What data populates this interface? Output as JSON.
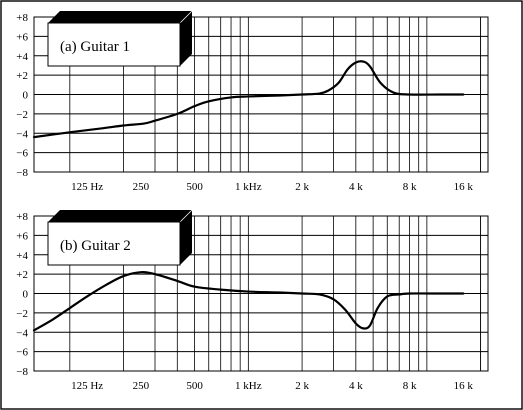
{
  "chart_data": [
    {
      "type": "line",
      "title": "(a) Guitar 1",
      "xlabel": "",
      "ylabel": "",
      "x_scale": "log",
      "xlim": [
        63,
        22000
      ],
      "ylim": [
        -8,
        8
      ],
      "grid": true,
      "y_ticks": [
        "+8",
        "+6",
        "+4",
        "+2",
        "0",
        "−2",
        "−4",
        "−6",
        "−8"
      ],
      "y_tick_values": [
        8,
        6,
        4,
        2,
        0,
        -2,
        -4,
        -6,
        -8
      ],
      "x_tick_labels": [
        "125 Hz",
        "250",
        "500",
        "1 kHz",
        "2 k",
        "4 k",
        "8 k",
        "16 k"
      ],
      "x_tick_values": [
        125,
        250,
        500,
        1000,
        2000,
        4000,
        8000,
        16000
      ],
      "series": [
        {
          "x": [
            63,
            100,
            150,
            200,
            260,
            300,
            400,
            500,
            600,
            800,
            1000,
            1500,
            2000,
            2500,
            2800,
            3200,
            3600,
            4000,
            4400,
            4800,
            5500,
            6500,
            8000,
            12000,
            16000
          ],
          "y": [
            -4.4,
            -3.9,
            -3.5,
            -3.2,
            -3.0,
            -2.7,
            -2.0,
            -1.2,
            -0.7,
            -0.3,
            -0.2,
            -0.1,
            0.0,
            0.1,
            0.4,
            1.2,
            2.6,
            3.3,
            3.4,
            2.9,
            1.2,
            0.2,
            0.0,
            0.0,
            0.0
          ]
        }
      ]
    },
    {
      "type": "line",
      "title": "(b) Guitar 2",
      "xlabel": "",
      "ylabel": "",
      "x_scale": "log",
      "xlim": [
        63,
        22000
      ],
      "ylim": [
        -8,
        8
      ],
      "grid": true,
      "y_ticks": [
        "+8",
        "+6",
        "+4",
        "+2",
        "0",
        "−2",
        "−4",
        "−6",
        "−8"
      ],
      "y_tick_values": [
        8,
        6,
        4,
        2,
        0,
        -2,
        -4,
        -6,
        -8
      ],
      "x_tick_labels": [
        "125 Hz",
        "250",
        "500",
        "1 kHz",
        "2 k",
        "4 k",
        "8 k",
        "16 k"
      ],
      "x_tick_values": [
        125,
        250,
        500,
        1000,
        2000,
        4000,
        8000,
        16000
      ],
      "series": [
        {
          "x": [
            63,
            80,
            100,
            125,
            160,
            200,
            250,
            300,
            400,
            500,
            700,
            1000,
            1500,
            2000,
            2500,
            3000,
            3500,
            4000,
            4400,
            4800,
            5300,
            6000,
            7000,
            8000,
            12000,
            16000
          ],
          "y": [
            -3.8,
            -2.7,
            -1.5,
            -0.3,
            0.9,
            1.8,
            2.2,
            2.0,
            1.3,
            0.7,
            0.4,
            0.2,
            0.1,
            0.0,
            -0.1,
            -0.6,
            -1.7,
            -3.1,
            -3.6,
            -3.3,
            -1.5,
            -0.3,
            -0.1,
            0.0,
            0.0,
            0.0
          ]
        }
      ]
    }
  ]
}
